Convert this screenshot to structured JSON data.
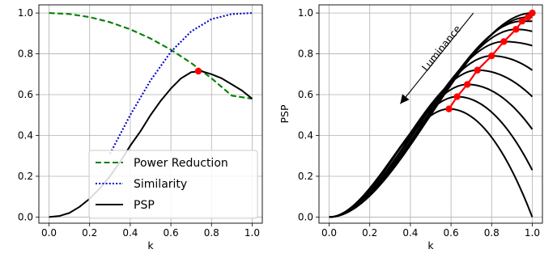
{
  "chart_data": [
    {
      "type": "line",
      "title": "",
      "xlabel": "k",
      "ylabel": "",
      "xlim": [
        -0.05,
        1.05
      ],
      "ylim": [
        -0.03,
        1.04
      ],
      "xticks": [
        0.0,
        0.2,
        0.4,
        0.6,
        0.8,
        1.0
      ],
      "yticks": [
        0.0,
        0.2,
        0.4,
        0.6,
        0.8,
        1.0
      ],
      "xtick_labels": [
        "0.0",
        "0.2",
        "0.4",
        "0.6",
        "0.8",
        "1.0"
      ],
      "ytick_labels": [
        "0.0",
        "0.2",
        "0.4",
        "0.6",
        "0.8",
        "1.0"
      ],
      "grid": true,
      "legend_position": "bottom-center",
      "series": [
        {
          "name": "Power Reduction",
          "color": "#008000",
          "style": "dashed",
          "x": [
            0.0,
            0.1,
            0.2,
            0.3,
            0.4,
            0.5,
            0.6,
            0.7,
            0.8,
            0.9,
            1.0
          ],
          "y": [
            1.0,
            0.995,
            0.98,
            0.955,
            0.92,
            0.875,
            0.82,
            0.755,
            0.68,
            0.595,
            0.58
          ]
        },
        {
          "name": "Similarity",
          "color": "#0000cc",
          "style": "dotted",
          "x": [
            0.3,
            0.4,
            0.5,
            0.6,
            0.7,
            0.8,
            0.9,
            1.0
          ],
          "y": [
            0.31,
            0.5,
            0.67,
            0.81,
            0.91,
            0.97,
            0.995,
            1.0
          ]
        },
        {
          "name": "PSP",
          "color": "#000000",
          "style": "solid",
          "x": [
            0.0,
            0.05,
            0.1,
            0.15,
            0.2,
            0.25,
            0.3,
            0.35,
            0.4,
            0.45,
            0.5,
            0.55,
            0.6,
            0.65,
            0.7,
            0.75,
            0.8,
            0.85,
            0.9,
            0.95,
            1.0
          ],
          "y": [
            0.0,
            0.005,
            0.02,
            0.05,
            0.09,
            0.14,
            0.2,
            0.27,
            0.35,
            0.42,
            0.5,
            0.57,
            0.63,
            0.68,
            0.71,
            0.715,
            0.7,
            0.68,
            0.65,
            0.62,
            0.58
          ]
        }
      ],
      "points": [
        {
          "x": 0.735,
          "y": 0.715,
          "color": "#ff0000"
        }
      ]
    },
    {
      "type": "line",
      "title": "",
      "xlabel": "k",
      "ylabel": "PSP",
      "xlim": [
        -0.05,
        1.05
      ],
      "ylim": [
        -0.03,
        1.04
      ],
      "xticks": [
        0.0,
        0.2,
        0.4,
        0.6,
        0.8,
        1.0
      ],
      "yticks": [
        0.0,
        0.2,
        0.4,
        0.6,
        0.8,
        1.0
      ],
      "xtick_labels": [
        "0.0",
        "0.2",
        "0.4",
        "0.6",
        "0.8",
        "1.0"
      ],
      "ytick_labels": [
        "0.0",
        "0.2",
        "0.4",
        "0.6",
        "0.8",
        "1.0"
      ],
      "grid": true,
      "annotation": "Luminance",
      "curve_color": "#000000",
      "curves": [
        {
          "peak_k": 0.59,
          "peak_value": 0.53,
          "end_value": 0.0
        },
        {
          "peak_k": 0.63,
          "peak_value": 0.59,
          "end_value": 0.23
        },
        {
          "peak_k": 0.68,
          "peak_value": 0.65,
          "end_value": 0.43
        },
        {
          "peak_k": 0.73,
          "peak_value": 0.72,
          "end_value": 0.59
        },
        {
          "peak_k": 0.8,
          "peak_value": 0.79,
          "end_value": 0.72
        },
        {
          "peak_k": 0.86,
          "peak_value": 0.86,
          "end_value": 0.84
        },
        {
          "peak_k": 0.92,
          "peak_value": 0.92,
          "end_value": 0.91
        },
        {
          "peak_k": 0.95,
          "peak_value": 0.96,
          "end_value": 0.96
        },
        {
          "peak_k": 0.98,
          "peak_value": 0.98,
          "end_value": 0.98
        },
        {
          "peak_k": 1.0,
          "peak_value": 1.0,
          "end_value": 1.0
        }
      ],
      "optimal_points": {
        "color": "#ff0000",
        "x": [
          0.59,
          0.63,
          0.68,
          0.73,
          0.8,
          0.86,
          0.92,
          0.95,
          0.98,
          1.0
        ],
        "y": [
          0.53,
          0.59,
          0.65,
          0.72,
          0.79,
          0.86,
          0.92,
          0.96,
          0.98,
          1.0
        ]
      }
    }
  ]
}
